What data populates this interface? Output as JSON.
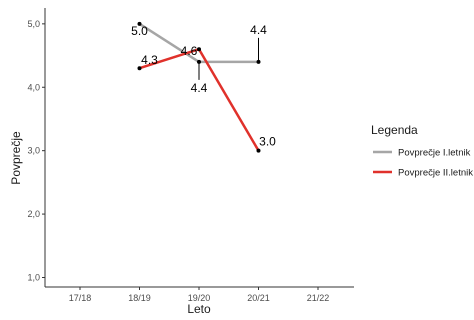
{
  "chart_data": {
    "type": "line",
    "title": "",
    "xlabel": "Leto",
    "ylabel": "Povprečje",
    "categories": [
      "17/18",
      "18/19",
      "19/20",
      "20/21",
      "21/22"
    ],
    "yticks": [
      "1,0",
      "2,0",
      "3,0",
      "4,0",
      "5,0"
    ],
    "ylim": [
      0.85,
      5.25
    ],
    "grid": false,
    "legend": {
      "title": "Legenda",
      "position": "right"
    },
    "series": [
      {
        "name": "Povprečje I.letnik",
        "color": "#a6a6a6",
        "x": [
          "18/19",
          "19/20",
          "20/21"
        ],
        "values": [
          5.0,
          4.4,
          4.4
        ],
        "labels": [
          "5.0",
          "4.4",
          "4.4"
        ]
      },
      {
        "name": "Povprečje II.letnik",
        "color": "#e0312b",
        "x": [
          "18/19",
          "19/20",
          "20/21"
        ],
        "values": [
          4.3,
          4.6,
          3.0
        ],
        "labels": [
          "4.3",
          "4.6",
          "3.0"
        ]
      }
    ]
  }
}
